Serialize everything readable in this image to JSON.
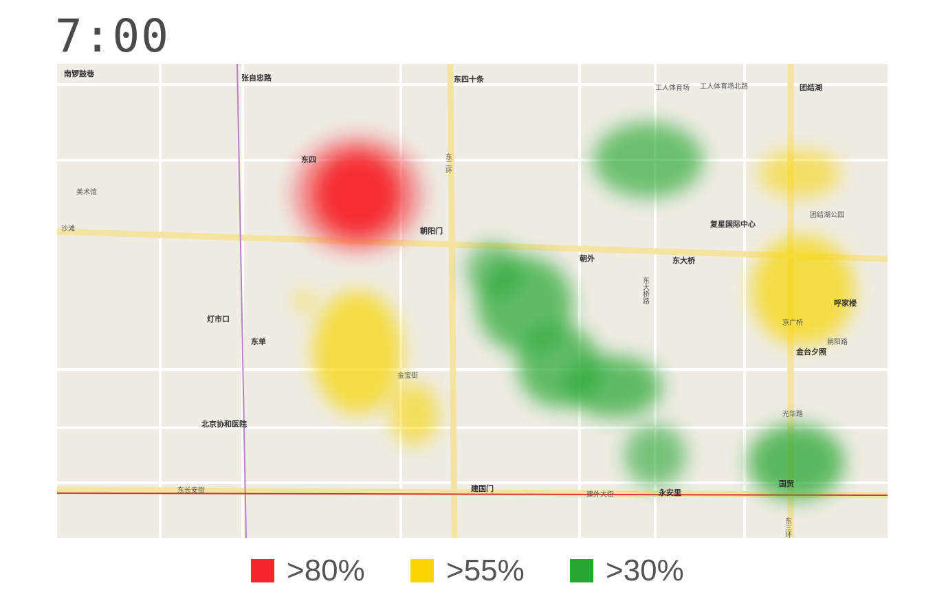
{
  "header": {
    "time": "7:00"
  },
  "map": {
    "labels": [
      "南锣鼓巷",
      "张自忠路",
      "东四十条",
      "东四",
      "朝阳门",
      "朝外",
      "东大桥",
      "灯市口",
      "东单",
      "建国门",
      "永安里",
      "国贸",
      "金台夕照",
      "团结湖",
      "呼家楼",
      "北京协和医院",
      "复星国际中心",
      "工人体育场北路",
      "东二环",
      "东三环",
      "建外大街",
      "朝阳路",
      "光华路",
      "金宝街",
      "东长安街",
      "工人体育场",
      "团结湖公园",
      "京广桥",
      "东大桥路",
      "沙滩",
      "美术馆"
    ]
  },
  "legend": {
    "items": [
      {
        "label": ">80%",
        "color": "#f6262c"
      },
      {
        "label": ">55%",
        "color": "#f7d500"
      },
      {
        "label": ">30%",
        "color": "#25a731"
      }
    ]
  }
}
